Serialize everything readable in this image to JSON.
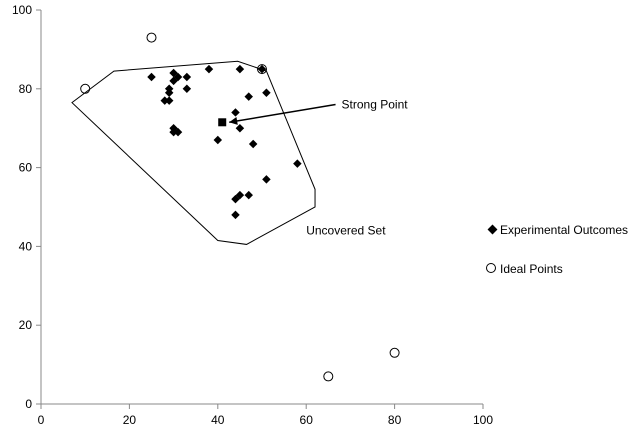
{
  "chart_data": {
    "type": "scatter",
    "title": "",
    "xlabel": "",
    "ylabel": "",
    "xlim": [
      0,
      100
    ],
    "ylim": [
      0,
      100
    ],
    "xticks": [
      0,
      20,
      40,
      60,
      80,
      100
    ],
    "yticks": [
      0,
      20,
      40,
      60,
      80,
      100
    ],
    "grid": false,
    "legend_position": "right",
    "series": [
      {
        "name": "Experimental Outcomes",
        "marker": "diamond",
        "color": "#000000",
        "points": [
          [
            25,
            83
          ],
          [
            28,
            77
          ],
          [
            29,
            80
          ],
          [
            29,
            77
          ],
          [
            30,
            84
          ],
          [
            30,
            82
          ],
          [
            31,
            83
          ],
          [
            33,
            83
          ],
          [
            33,
            80
          ],
          [
            30,
            70
          ],
          [
            30,
            69
          ],
          [
            31,
            69
          ],
          [
            29,
            79
          ],
          [
            38,
            85
          ],
          [
            45,
            85
          ],
          [
            47,
            78
          ],
          [
            51,
            79
          ],
          [
            40,
            67
          ],
          [
            45,
            70
          ],
          [
            48,
            66
          ],
          [
            58,
            61
          ],
          [
            51,
            57
          ],
          [
            47,
            53
          ],
          [
            45,
            53
          ],
          [
            44,
            52
          ],
          [
            44,
            48
          ],
          [
            50,
            85
          ],
          [
            44,
            74
          ]
        ]
      },
      {
        "name": "Ideal Points",
        "marker": "circle-open",
        "color": "#000000",
        "points": [
          [
            10,
            80
          ],
          [
            25,
            93
          ],
          [
            50,
            85
          ],
          [
            65,
            7
          ],
          [
            80,
            13
          ]
        ]
      }
    ],
    "strong_point": {
      "x": 41,
      "y": 71.5,
      "marker": "square",
      "label": "Strong Point",
      "label_at": [
        68,
        75
      ]
    },
    "uncovered_set": {
      "label": "Uncovered Set",
      "label_at": [
        60,
        43
      ],
      "vertices": [
        [
          7,
          76.5
        ],
        [
          16.5,
          84.5
        ],
        [
          44.5,
          87
        ],
        [
          51,
          84.5
        ],
        [
          62,
          54.5
        ],
        [
          62,
          50
        ],
        [
          46.5,
          40.5
        ],
        [
          40,
          41.5
        ]
      ]
    }
  }
}
